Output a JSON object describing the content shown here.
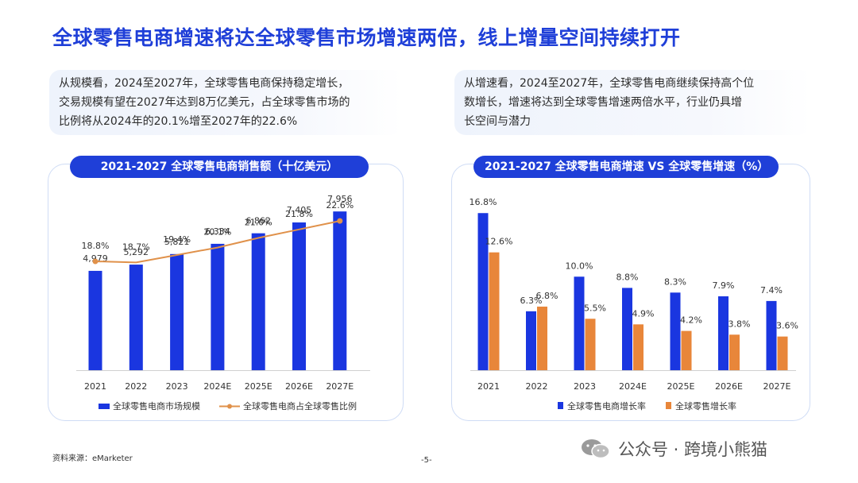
{
  "title": "全球零售电商增速将达全球零售市场增速两倍，线上增量空间持续打开",
  "notes": {
    "left": [
      "从规模看，2024至2027年，全球零售电商保持稳定增长，",
      "交易规模有望在2027年达到8万亿美元，占全球零售市场的",
      "比例将从2024年的20.1%增至2027年的22.6%"
    ],
    "right": [
      "从增速看，2024至2027年，全球零售电商继续保持高个位",
      "数增长，增速将达到全球零售增速两倍水平，行业仍具增",
      "长空间与潜力"
    ]
  },
  "footer": {
    "source": "资料来源：eMarketer",
    "page": "-5-",
    "watermark": "公众号 · 跨境小熊猫"
  },
  "colors": {
    "brand_blue": "#1f3fd8",
    "bar_blue": "#1a36e0",
    "orange": "#e8863a",
    "line_orange": "#e0914a"
  },
  "chart_data": [
    {
      "type": "bar",
      "title": "2021-2027 全球零售电商销售额（十亿美元）",
      "categories": [
        "2021",
        "2022",
        "2023",
        "2024E",
        "2025E",
        "2026E",
        "2027E"
      ],
      "series": [
        {
          "name": "全球零售电商市场规模",
          "type": "bar",
          "values": [
            4979,
            5292,
            5821,
            6334,
            6862,
            7405,
            7956
          ],
          "labels": [
            "4,979",
            "5,292",
            "5,821",
            "6,334",
            "6,862",
            "7,405",
            "7,956"
          ]
        },
        {
          "name": "全球零售电商占全球零售比例",
          "type": "line",
          "values": [
            18.8,
            18.7,
            19.4,
            20.1,
            21.0,
            21.8,
            22.6
          ],
          "labels": [
            "18.8%",
            "18.7%",
            "19.4%",
            "20.1%",
            "21.0%",
            "21.8%",
            "22.6%"
          ]
        }
      ],
      "ylim": [
        0,
        8600
      ],
      "line_ylim": [
        12,
        25
      ],
      "grid": false,
      "legend": "bottom"
    },
    {
      "type": "bar",
      "title": "2021-2027 全球零售电商增速 VS 全球零售增速（%）",
      "categories": [
        "2021",
        "2022",
        "2023",
        "2024E",
        "2025E",
        "2026E",
        "2027E"
      ],
      "series": [
        {
          "name": "全球零售电商增长率",
          "values": [
            16.8,
            6.3,
            10.0,
            8.8,
            8.3,
            7.9,
            7.4
          ],
          "labels": [
            "16.8%",
            "6.3%",
            "10.0%",
            "8.8%",
            "8.3%",
            "7.9%",
            "7.4%"
          ]
        },
        {
          "name": "全球零售增长率",
          "values": [
            12.6,
            6.8,
            5.5,
            4.9,
            4.2,
            3.8,
            3.6
          ],
          "labels": [
            "12.6%",
            "6.8%",
            "5.5%",
            "4.9%",
            "4.2%",
            "3.8%",
            "3.6%"
          ]
        }
      ],
      "ylim": [
        0,
        17.5
      ],
      "grid": false,
      "legend": "bottom"
    }
  ]
}
